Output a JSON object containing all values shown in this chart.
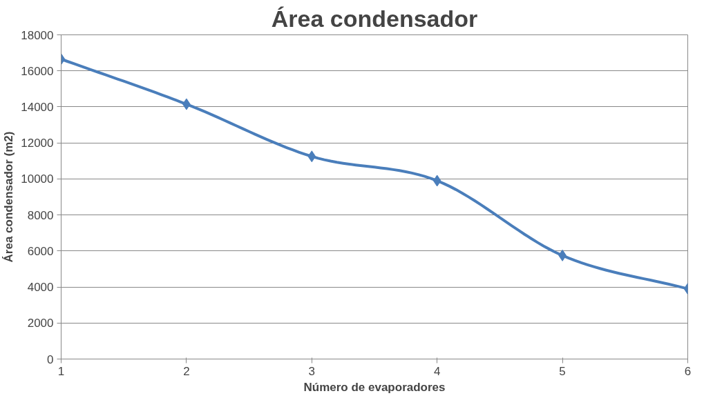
{
  "chart_data": {
    "type": "line",
    "title": "Área condensador",
    "xlabel": "Número de evaporadores",
    "ylabel": "Área condensador (m2)",
    "x": [
      1,
      2,
      3,
      4,
      5,
      6
    ],
    "series": [
      {
        "color": "#4a7ebb",
        "values": [
          16650,
          14150,
          11250,
          9900,
          5750,
          3900
        ]
      }
    ],
    "xlim": [
      1,
      6
    ],
    "xticks": [
      1,
      2,
      3,
      4,
      5,
      6
    ],
    "ylim": [
      0,
      18000
    ],
    "yticks": [
      0,
      2000,
      4000,
      6000,
      8000,
      10000,
      12000,
      14000,
      16000,
      18000
    ],
    "grid": "y",
    "marker": "diamond",
    "line_style": "solid"
  }
}
